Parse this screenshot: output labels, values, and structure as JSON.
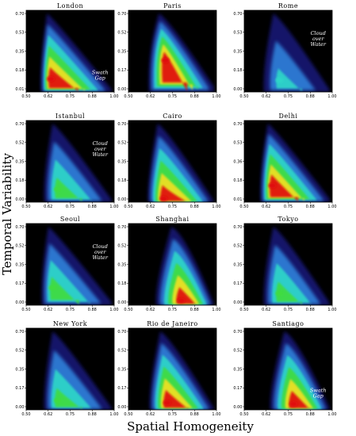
{
  "figure": {
    "ylabel": "Temporal Variability",
    "xlabel": "Spatial Homogeneity",
    "colors": {
      "background": "#000000",
      "density_low": "#1a1a8c",
      "density_mid_low": "#2f7fd8",
      "density_mid": "#2fd6c8",
      "density_mid_high": "#3fdc3f",
      "density_high": "#f0e020",
      "density_peak": "#e01010"
    }
  },
  "chart_data": [
    {
      "type": "heatmap",
      "title": "London",
      "x_ticks": [
        "0.50",
        "0.62",
        "0.75",
        "0.88",
        "1.00"
      ],
      "y_ticks": [
        "0.70",
        "0.53",
        "0.35",
        "0.18",
        "0.01"
      ],
      "xlim": [
        0.5,
        1.0
      ],
      "ylim": [
        0.01,
        0.7
      ],
      "annotation": [
        "Swath",
        "Gap"
      ],
      "density_peak": {
        "x": 0.64,
        "y": 0.12
      },
      "max_level": "red"
    },
    {
      "type": "heatmap",
      "title": "Paris",
      "x_ticks": [
        "0.50",
        "0.62",
        "0.75",
        "0.88",
        "1.00"
      ],
      "y_ticks": [
        "0.70",
        "0.52",
        "0.35",
        "0.17",
        "0.00"
      ],
      "xlim": [
        0.5,
        1.0
      ],
      "ylim": [
        0.0,
        0.7
      ],
      "annotation": [],
      "density_peak": {
        "x": 0.71,
        "y": 0.27
      },
      "max_level": "red"
    },
    {
      "type": "heatmap",
      "title": "Rome",
      "x_ticks": [
        "0.50",
        "0.62",
        "0.75",
        "0.88",
        "1.00"
      ],
      "y_ticks": [
        "0.70",
        "0.53",
        "0.35",
        "0.18",
        "0.00"
      ],
      "xlim": [
        0.5,
        1.0
      ],
      "ylim": [
        0.0,
        0.7
      ],
      "annotation": [
        "Cloud",
        "over",
        "Water"
      ],
      "density_peak": {
        "x": 0.7,
        "y": 0.1
      },
      "max_level": "cyan"
    },
    {
      "type": "heatmap",
      "title": "Istanbul",
      "x_ticks": [
        "0.50",
        "0.62",
        "0.75",
        "0.88",
        "1.00"
      ],
      "y_ticks": [
        "0.70",
        "0.52",
        "0.35",
        "0.18",
        "0.00"
      ],
      "xlim": [
        0.5,
        1.0
      ],
      "ylim": [
        0.0,
        0.7
      ],
      "annotation": [
        "Cloud",
        "over",
        "Water"
      ],
      "density_peak": {
        "x": 0.68,
        "y": 0.11
      },
      "max_level": "green"
    },
    {
      "type": "heatmap",
      "title": "Cairo",
      "x_ticks": [
        "0.50",
        "0.62",
        "0.75",
        "0.88",
        "1.00"
      ],
      "y_ticks": [
        "0.70",
        "0.52",
        "0.35",
        "0.18",
        "0.00"
      ],
      "xlim": [
        0.5,
        1.0
      ],
      "ylim": [
        0.0,
        0.7
      ],
      "annotation": [],
      "density_peak": {
        "x": 0.7,
        "y": 0.03
      },
      "max_level": "red"
    },
    {
      "type": "heatmap",
      "title": "Delhi",
      "x_ticks": [
        "0.50",
        "0.62",
        "0.75",
        "0.88",
        "1.00"
      ],
      "y_ticks": [
        "0.70",
        "0.53",
        "0.36",
        "0.18",
        "0.01"
      ],
      "xlim": [
        0.5,
        1.0
      ],
      "ylim": [
        0.01,
        0.7
      ],
      "annotation": [],
      "density_peak": {
        "x": 0.66,
        "y": 0.15
      },
      "max_level": "red"
    },
    {
      "type": "heatmap",
      "title": "Seoul",
      "x_ticks": [
        "0.50",
        "0.62",
        "0.75",
        "0.88",
        "1.00"
      ],
      "y_ticks": [
        "0.70",
        "0.52",
        "0.35",
        "0.17",
        "0.00"
      ],
      "xlim": [
        0.5,
        1.0
      ],
      "ylim": [
        0.0,
        0.7
      ],
      "annotation": [
        "Cloud",
        "over",
        "Water"
      ],
      "density_peak": {
        "x": 0.65,
        "y": 0.15
      },
      "max_level": "green"
    },
    {
      "type": "heatmap",
      "title": "Shanghai",
      "x_ticks": [
        "0.50",
        "0.62",
        "0.75",
        "0.88",
        "1.00"
      ],
      "y_ticks": [
        "0.70",
        "0.52",
        "0.35",
        "0.18",
        "0.00"
      ],
      "xlim": [
        0.5,
        1.0
      ],
      "ylim": [
        0.0,
        0.7
      ],
      "annotation": [],
      "density_peak": {
        "x": 0.8,
        "y": 0.04
      },
      "max_level": "red"
    },
    {
      "type": "heatmap",
      "title": "Tokyo",
      "x_ticks": [
        "0.50",
        "0.62",
        "0.75",
        "0.88",
        "1.00"
      ],
      "y_ticks": [
        "0.70",
        "0.52",
        "0.35",
        "0.17",
        "0.00"
      ],
      "xlim": [
        0.5,
        1.0
      ],
      "ylim": [
        0.0,
        0.7
      ],
      "annotation": [],
      "density_peak": {
        "x": 0.7,
        "y": 0.1
      },
      "max_level": "green"
    },
    {
      "type": "heatmap",
      "title": "New York",
      "x_ticks": [
        "0.50",
        "0.62",
        "0.75",
        "0.88",
        "1.00"
      ],
      "y_ticks": [
        "0.70",
        "0.52",
        "0.35",
        "0.17",
        "0.00"
      ],
      "xlim": [
        0.5,
        1.0
      ],
      "ylim": [
        0.0,
        0.7
      ],
      "annotation": [],
      "density_peak": {
        "x": 0.68,
        "y": 0.08
      },
      "max_level": "green"
    },
    {
      "type": "heatmap",
      "title": "Rio de Janeiro",
      "x_ticks": [
        "0.50",
        "0.62",
        "0.75",
        "0.88",
        "1.00"
      ],
      "y_ticks": [
        "0.70",
        "0.52",
        "0.35",
        "0.17",
        "0.00"
      ],
      "xlim": [
        0.5,
        1.0
      ],
      "ylim": [
        0.0,
        0.7
      ],
      "annotation": [],
      "density_peak": {
        "x": 0.72,
        "y": 0.06
      },
      "max_level": "red"
    },
    {
      "type": "heatmap",
      "title": "Santiago",
      "x_ticks": [
        "0.50",
        "0.62",
        "0.75",
        "0.88",
        "1.00"
      ],
      "y_ticks": [
        "0.70",
        "0.52",
        "0.35",
        "0.17",
        "0.00"
      ],
      "xlim": [
        0.5,
        1.0
      ],
      "ylim": [
        0.0,
        0.7
      ],
      "annotation": [
        "Swath",
        "Gap"
      ],
      "density_peak": {
        "x": 0.78,
        "y": 0.05
      },
      "max_level": "red"
    }
  ]
}
